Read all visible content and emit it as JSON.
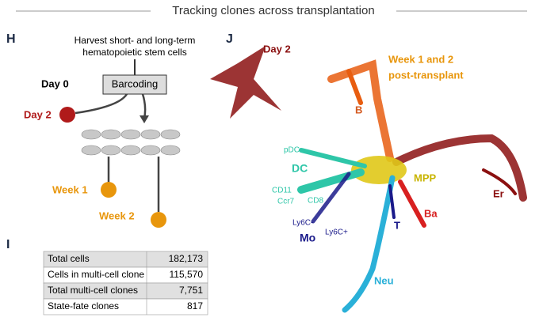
{
  "header": {
    "title": "Tracking clones across transplantation"
  },
  "panel_h": {
    "label": "H",
    "harvest": [
      "Harvest short- and long-term",
      "hematopoietic stem cells"
    ],
    "day0": "Day 0",
    "barcoding": "Barcoding",
    "day2": "Day 2",
    "week1": "Week 1",
    "week2": "Week 2"
  },
  "panel_i": {
    "label": "I",
    "table": {
      "rows": [
        [
          "Total cells",
          "182,173"
        ],
        [
          "Cells in multi-cell clone",
          "115,570"
        ],
        [
          "Total multi-cell clones",
          "7,751"
        ],
        [
          "State-fate clones",
          "817"
        ]
      ]
    }
  },
  "panel_j": {
    "label": "J",
    "labels": [
      "Day 2",
      "Week 1 and 2",
      "post-transplant",
      "B",
      "pDC",
      "DC",
      "CD11",
      "Ccr7",
      "CD8",
      "MPP",
      "Er",
      "Ba",
      "T",
      "Ly6C-",
      "Ly6C+",
      "Mo",
      "Neu"
    ]
  }
}
